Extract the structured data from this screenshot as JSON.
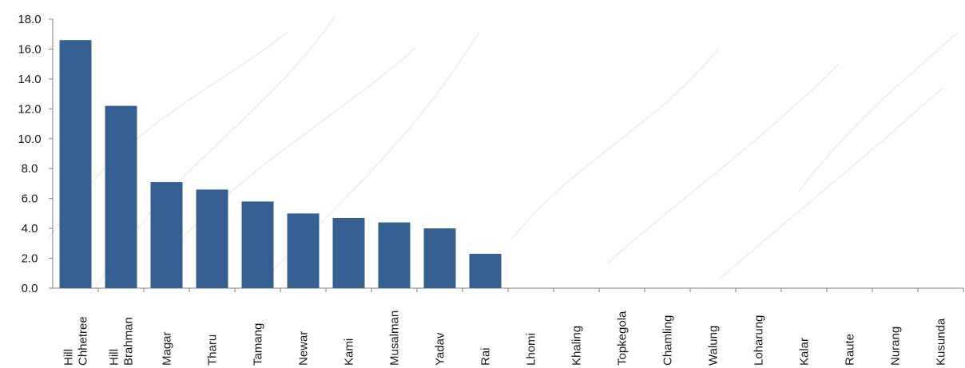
{
  "chart_data": {
    "type": "bar",
    "categories": [
      [
        "Hill",
        "Chhetree"
      ],
      [
        "Hill",
        "Brahman"
      ],
      [
        "Magar"
      ],
      [
        "Tharu"
      ],
      [
        "Tamang"
      ],
      [
        "Newar"
      ],
      [
        "Kami"
      ],
      [
        "Musalman"
      ],
      [
        "Yadav"
      ],
      [
        "Rai"
      ],
      [
        "Lhomi"
      ],
      [
        "Khaling"
      ],
      [
        "Topkegola"
      ],
      [
        "Chamling"
      ],
      [
        "Walung"
      ],
      [
        "Loharung"
      ],
      [
        "Kalar"
      ],
      [
        "Raute"
      ],
      [
        "Nurang"
      ],
      [
        "Kusunda"
      ]
    ],
    "values": [
      16.6,
      12.2,
      7.1,
      6.6,
      5.8,
      5.0,
      4.7,
      4.4,
      4.0,
      2.3,
      0,
      0,
      0,
      0,
      0,
      0,
      0,
      0,
      0,
      0
    ],
    "ylim": [
      0,
      18
    ],
    "yticks": [
      "0.0",
      "2.0",
      "4.0",
      "6.0",
      "8.0",
      "10.0",
      "12.0",
      "14.0",
      "16.0",
      "18.0"
    ],
    "bar_color": "#366092",
    "axis_color": "#808080",
    "grid": false,
    "legend": "none"
  }
}
